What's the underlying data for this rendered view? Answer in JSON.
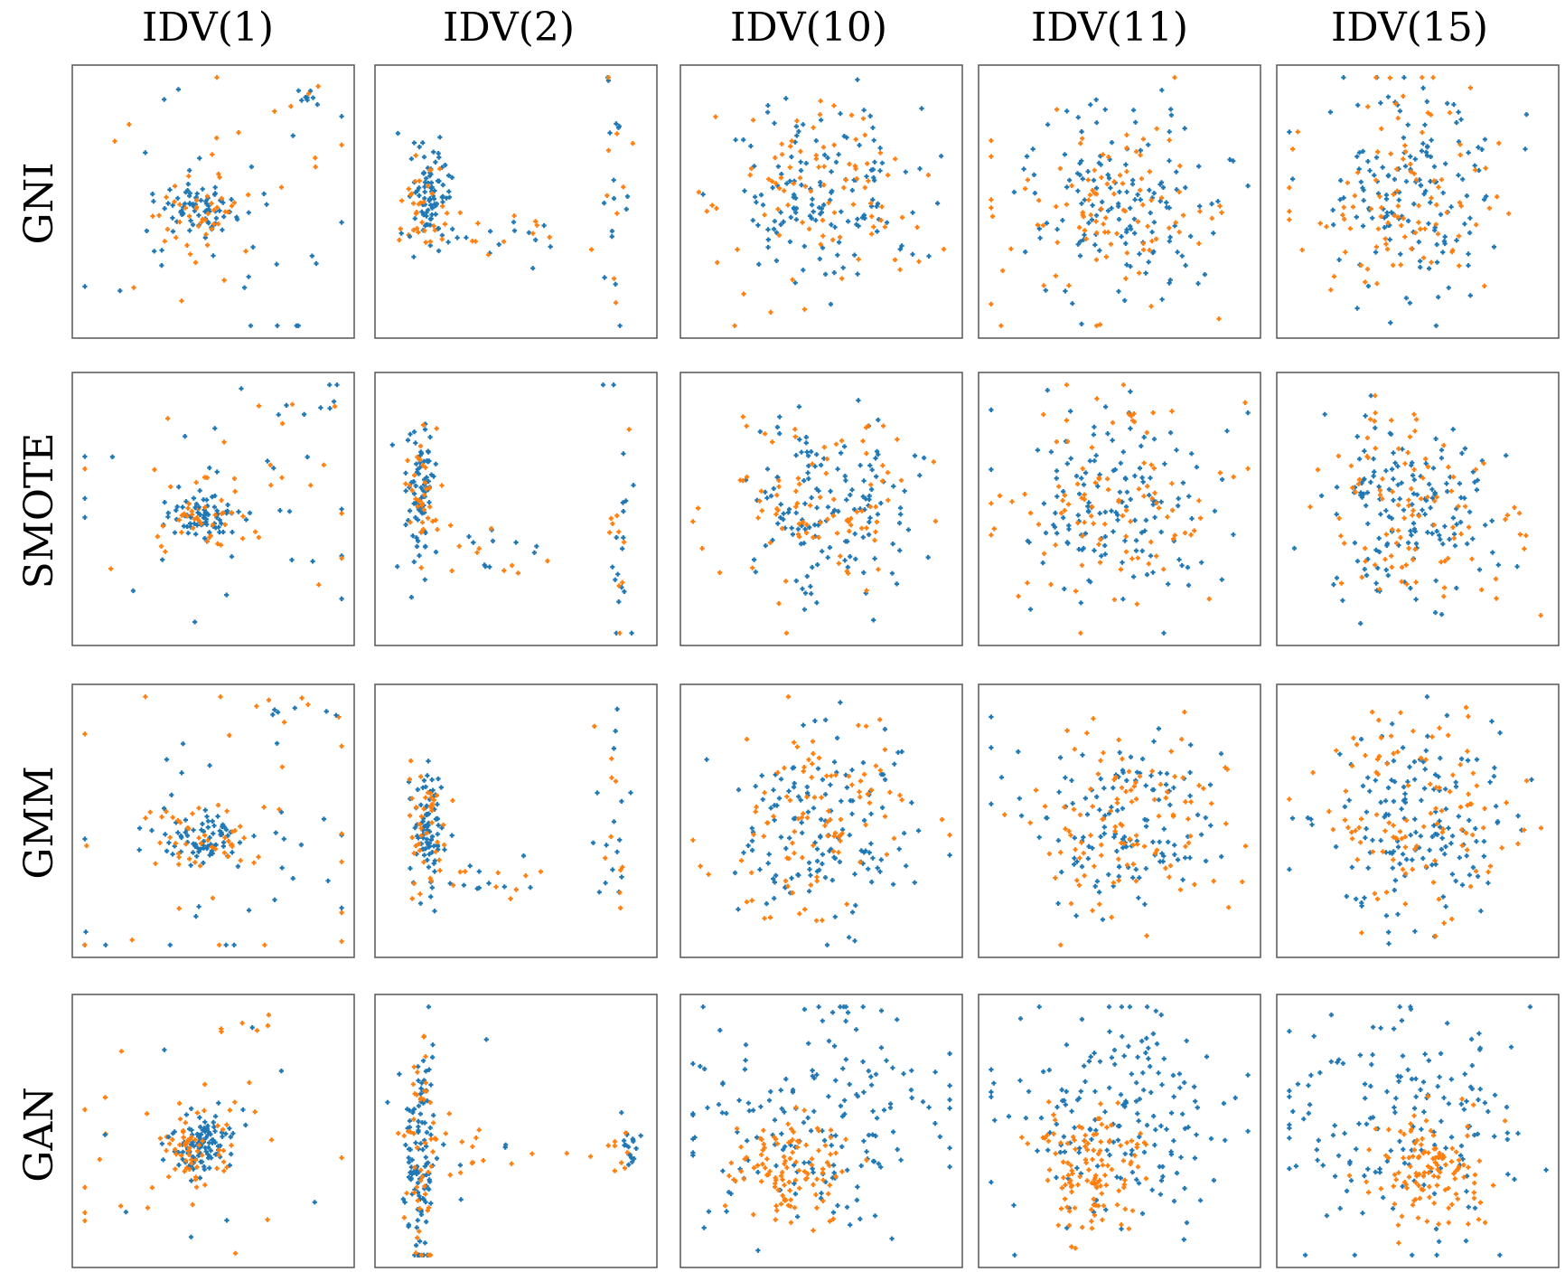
{
  "colors": {
    "real": "#1f77b4",
    "synthetic": "#ff7f0e"
  },
  "chart_data": {
    "type": "scatter",
    "columns": [
      "IDV(1)",
      "IDV(2)",
      "IDV(10)",
      "IDV(11)",
      "IDV(15)"
    ],
    "rows": [
      "GNI",
      "SMOTE",
      "GMM",
      "GAN"
    ],
    "axis_ticks": "none",
    "marker": "+",
    "series_colors": [
      "#1f77b4",
      "#ff7f0e"
    ],
    "xlim": [
      0,
      1
    ],
    "ylim": [
      0,
      1
    ],
    "panels": [
      {
        "row": "GNI",
        "column": "IDV(1)",
        "clusters": [
          {
            "color": "#1f77b4",
            "cx": 0.45,
            "cy": 0.47,
            "sx": 0.07,
            "sy": 0.05,
            "n": 70
          },
          {
            "color": "#ff7f0e",
            "cx": 0.45,
            "cy": 0.47,
            "sx": 0.09,
            "sy": 0.06,
            "n": 35
          },
          {
            "color": "#1f77b4",
            "cx": 0.55,
            "cy": 0.5,
            "sx": 0.35,
            "sy": 0.3,
            "n": 30
          },
          {
            "color": "#ff7f0e",
            "cx": 0.55,
            "cy": 0.5,
            "sx": 0.35,
            "sy": 0.3,
            "n": 20
          },
          {
            "color": "#1f77b4",
            "cx": 0.87,
            "cy": 0.9,
            "sx": 0.05,
            "sy": 0.02,
            "n": 7
          },
          {
            "color": "#ff7f0e",
            "cx": 0.82,
            "cy": 0.9,
            "sx": 0.07,
            "sy": 0.03,
            "n": 4
          }
        ]
      },
      {
        "row": "GNI",
        "column": "IDV(2)",
        "clusters": [
          {
            "color": "#1f77b4",
            "cx": 0.17,
            "cy": 0.5,
            "sx": 0.04,
            "sy": 0.1,
            "n": 85
          },
          {
            "color": "#ff7f0e",
            "cx": 0.17,
            "cy": 0.48,
            "sx": 0.05,
            "sy": 0.1,
            "n": 35
          },
          {
            "color": "#1f77b4",
            "cx": 0.4,
            "cy": 0.36,
            "sx": 0.12,
            "sy": 0.06,
            "n": 14
          },
          {
            "color": "#ff7f0e",
            "cx": 0.4,
            "cy": 0.36,
            "sx": 0.12,
            "sy": 0.06,
            "n": 10
          },
          {
            "color": "#1f77b4",
            "cx": 0.86,
            "cy": 0.5,
            "sx": 0.03,
            "sy": 0.3,
            "n": 16
          },
          {
            "color": "#ff7f0e",
            "cx": 0.86,
            "cy": 0.5,
            "sx": 0.03,
            "sy": 0.3,
            "n": 10
          }
        ]
      },
      {
        "row": "GNI",
        "column": "IDV(10)",
        "clusters": [
          {
            "color": "#1f77b4",
            "cx": 0.5,
            "cy": 0.52,
            "sx": 0.18,
            "sy": 0.18,
            "n": 140
          },
          {
            "color": "#ff7f0e",
            "cx": 0.5,
            "cy": 0.52,
            "sx": 0.2,
            "sy": 0.2,
            "n": 90
          }
        ]
      },
      {
        "row": "GNI",
        "column": "IDV(11)",
        "clusters": [
          {
            "color": "#1f77b4",
            "cx": 0.5,
            "cy": 0.5,
            "sx": 0.2,
            "sy": 0.18,
            "n": 140
          },
          {
            "color": "#ff7f0e",
            "cx": 0.5,
            "cy": 0.5,
            "sx": 0.22,
            "sy": 0.2,
            "n": 100
          }
        ]
      },
      {
        "row": "GNI",
        "column": "IDV(15)",
        "clusters": [
          {
            "color": "#1f77b4",
            "cx": 0.48,
            "cy": 0.52,
            "sx": 0.18,
            "sy": 0.2,
            "n": 150
          },
          {
            "color": "#ff7f0e",
            "cx": 0.48,
            "cy": 0.52,
            "sx": 0.2,
            "sy": 0.22,
            "n": 100
          }
        ]
      },
      {
        "row": "SMOTE",
        "column": "IDV(1)",
        "clusters": [
          {
            "color": "#1f77b4",
            "cx": 0.45,
            "cy": 0.47,
            "sx": 0.07,
            "sy": 0.04,
            "n": 70
          },
          {
            "color": "#ff7f0e",
            "cx": 0.45,
            "cy": 0.47,
            "sx": 0.09,
            "sy": 0.06,
            "n": 35
          },
          {
            "color": "#1f77b4",
            "cx": 0.55,
            "cy": 0.5,
            "sx": 0.35,
            "sy": 0.3,
            "n": 30
          },
          {
            "color": "#ff7f0e",
            "cx": 0.55,
            "cy": 0.5,
            "sx": 0.35,
            "sy": 0.3,
            "n": 20
          },
          {
            "color": "#1f77b4",
            "cx": 0.85,
            "cy": 0.88,
            "sx": 0.06,
            "sy": 0.03,
            "n": 6
          },
          {
            "color": "#ff7f0e",
            "cx": 0.8,
            "cy": 0.9,
            "sx": 0.08,
            "sy": 0.03,
            "n": 4
          }
        ]
      },
      {
        "row": "SMOTE",
        "column": "IDV(2)",
        "clusters": [
          {
            "color": "#1f77b4",
            "cx": 0.14,
            "cy": 0.55,
            "sx": 0.03,
            "sy": 0.15,
            "n": 80
          },
          {
            "color": "#ff7f0e",
            "cx": 0.14,
            "cy": 0.55,
            "sx": 0.035,
            "sy": 0.15,
            "n": 35
          },
          {
            "color": "#1f77b4",
            "cx": 0.4,
            "cy": 0.35,
            "sx": 0.12,
            "sy": 0.07,
            "n": 10
          },
          {
            "color": "#ff7f0e",
            "cx": 0.4,
            "cy": 0.35,
            "sx": 0.12,
            "sy": 0.07,
            "n": 10
          },
          {
            "color": "#1f77b4",
            "cx": 0.88,
            "cy": 0.48,
            "sx": 0.03,
            "sy": 0.3,
            "n": 18
          },
          {
            "color": "#ff7f0e",
            "cx": 0.88,
            "cy": 0.48,
            "sx": 0.03,
            "sy": 0.3,
            "n": 10
          }
        ]
      },
      {
        "row": "SMOTE",
        "column": "IDV(10)",
        "clusters": [
          {
            "color": "#1f77b4",
            "cx": 0.52,
            "cy": 0.5,
            "sx": 0.15,
            "sy": 0.16,
            "n": 140
          },
          {
            "color": "#ff7f0e",
            "cx": 0.5,
            "cy": 0.5,
            "sx": 0.2,
            "sy": 0.18,
            "n": 90
          }
        ]
      },
      {
        "row": "SMOTE",
        "column": "IDV(11)",
        "clusters": [
          {
            "color": "#1f77b4",
            "cx": 0.5,
            "cy": 0.5,
            "sx": 0.2,
            "sy": 0.18,
            "n": 140
          },
          {
            "color": "#ff7f0e",
            "cx": 0.5,
            "cy": 0.5,
            "sx": 0.22,
            "sy": 0.2,
            "n": 100
          }
        ]
      },
      {
        "row": "SMOTE",
        "column": "IDV(15)",
        "clusters": [
          {
            "color": "#1f77b4",
            "cx": 0.5,
            "cy": 0.5,
            "sx": 0.18,
            "sy": 0.18,
            "n": 150
          },
          {
            "color": "#ff7f0e",
            "cx": 0.5,
            "cy": 0.5,
            "sx": 0.2,
            "sy": 0.2,
            "n": 100
          }
        ]
      },
      {
        "row": "GMM",
        "column": "IDV(1)",
        "clusters": [
          {
            "color": "#1f77b4",
            "cx": 0.47,
            "cy": 0.43,
            "sx": 0.08,
            "sy": 0.05,
            "n": 70
          },
          {
            "color": "#ff7f0e",
            "cx": 0.47,
            "cy": 0.43,
            "sx": 0.1,
            "sy": 0.06,
            "n": 40
          },
          {
            "color": "#1f77b4",
            "cx": 0.55,
            "cy": 0.45,
            "sx": 0.35,
            "sy": 0.3,
            "n": 30
          },
          {
            "color": "#ff7f0e",
            "cx": 0.55,
            "cy": 0.45,
            "sx": 0.35,
            "sy": 0.3,
            "n": 25
          },
          {
            "color": "#1f77b4",
            "cx": 0.8,
            "cy": 0.91,
            "sx": 0.07,
            "sy": 0.02,
            "n": 6
          },
          {
            "color": "#ff7f0e",
            "cx": 0.75,
            "cy": 0.92,
            "sx": 0.08,
            "sy": 0.03,
            "n": 4
          }
        ]
      },
      {
        "row": "GMM",
        "column": "IDV(2)",
        "clusters": [
          {
            "color": "#1f77b4",
            "cx": 0.17,
            "cy": 0.48,
            "sx": 0.03,
            "sy": 0.12,
            "n": 85
          },
          {
            "color": "#ff7f0e",
            "cx": 0.17,
            "cy": 0.48,
            "sx": 0.04,
            "sy": 0.12,
            "n": 40
          },
          {
            "color": "#1f77b4",
            "cx": 0.38,
            "cy": 0.3,
            "sx": 0.1,
            "sy": 0.06,
            "n": 10
          },
          {
            "color": "#ff7f0e",
            "cx": 0.38,
            "cy": 0.3,
            "sx": 0.1,
            "sy": 0.06,
            "n": 10
          },
          {
            "color": "#1f77b4",
            "cx": 0.86,
            "cy": 0.48,
            "sx": 0.03,
            "sy": 0.3,
            "n": 16
          },
          {
            "color": "#ff7f0e",
            "cx": 0.86,
            "cy": 0.48,
            "sx": 0.03,
            "sy": 0.3,
            "n": 10
          }
        ]
      },
      {
        "row": "GMM",
        "column": "IDV(10)",
        "clusters": [
          {
            "color": "#1f77b4",
            "cx": 0.5,
            "cy": 0.5,
            "sx": 0.18,
            "sy": 0.18,
            "n": 140
          },
          {
            "color": "#ff7f0e",
            "cx": 0.5,
            "cy": 0.5,
            "sx": 0.2,
            "sy": 0.2,
            "n": 100
          }
        ]
      },
      {
        "row": "GMM",
        "column": "IDV(11)",
        "clusters": [
          {
            "color": "#1f77b4",
            "cx": 0.5,
            "cy": 0.5,
            "sx": 0.18,
            "sy": 0.18,
            "n": 130
          },
          {
            "color": "#ff7f0e",
            "cx": 0.53,
            "cy": 0.5,
            "sx": 0.18,
            "sy": 0.18,
            "n": 110
          }
        ]
      },
      {
        "row": "GMM",
        "column": "IDV(15)",
        "clusters": [
          {
            "color": "#1f77b4",
            "cx": 0.5,
            "cy": 0.5,
            "sx": 0.18,
            "sy": 0.18,
            "n": 150
          },
          {
            "color": "#ff7f0e",
            "cx": 0.5,
            "cy": 0.5,
            "sx": 0.2,
            "sy": 0.2,
            "n": 110
          }
        ]
      },
      {
        "row": "GAN",
        "column": "IDV(1)",
        "clusters": [
          {
            "color": "#1f77b4",
            "cx": 0.45,
            "cy": 0.45,
            "sx": 0.05,
            "sy": 0.06,
            "n": 110
          },
          {
            "color": "#ff7f0e",
            "cx": 0.42,
            "cy": 0.46,
            "sx": 0.08,
            "sy": 0.07,
            "n": 50
          },
          {
            "color": "#ff7f0e",
            "cx": 0.45,
            "cy": 0.45,
            "sx": 0.25,
            "sy": 0.15,
            "n": 30
          },
          {
            "color": "#1f77b4",
            "cx": 0.5,
            "cy": 0.5,
            "sx": 0.25,
            "sy": 0.2,
            "n": 15
          },
          {
            "color": "#ff7f0e",
            "cx": 0.62,
            "cy": 0.9,
            "sx": 0.1,
            "sy": 0.03,
            "n": 5
          }
        ]
      },
      {
        "row": "GAN",
        "column": "IDV(2)",
        "clusters": [
          {
            "color": "#1f77b4",
            "cx": 0.14,
            "cy": 0.4,
            "sx": 0.03,
            "sy": 0.22,
            "n": 110
          },
          {
            "color": "#ff7f0e",
            "cx": 0.15,
            "cy": 0.45,
            "sx": 0.04,
            "sy": 0.2,
            "n": 50
          },
          {
            "color": "#ff7f0e",
            "cx": 0.45,
            "cy": 0.4,
            "sx": 0.2,
            "sy": 0.08,
            "n": 15
          },
          {
            "color": "#1f77b4",
            "cx": 0.35,
            "cy": 0.6,
            "sx": 0.15,
            "sy": 0.2,
            "n": 8
          },
          {
            "color": "#1f77b4",
            "cx": 0.92,
            "cy": 0.45,
            "sx": 0.02,
            "sy": 0.04,
            "n": 18
          },
          {
            "color": "#ff7f0e",
            "cx": 0.9,
            "cy": 0.38,
            "sx": 0.03,
            "sy": 0.07,
            "n": 8
          }
        ]
      },
      {
        "row": "GAN",
        "column": "IDV(10)",
        "clusters": [
          {
            "color": "#1f77b4",
            "cx": 0.5,
            "cy": 0.55,
            "sx": 0.25,
            "sy": 0.22,
            "n": 170
          },
          {
            "color": "#ff7f0e",
            "cx": 0.38,
            "cy": 0.35,
            "sx": 0.12,
            "sy": 0.1,
            "n": 110
          }
        ]
      },
      {
        "row": "GAN",
        "column": "IDV(11)",
        "clusters": [
          {
            "color": "#1f77b4",
            "cx": 0.5,
            "cy": 0.55,
            "sx": 0.25,
            "sy": 0.22,
            "n": 170
          },
          {
            "color": "#ff7f0e",
            "cx": 0.38,
            "cy": 0.35,
            "sx": 0.1,
            "sy": 0.12,
            "n": 120
          }
        ]
      },
      {
        "row": "GAN",
        "column": "IDV(15)",
        "clusters": [
          {
            "color": "#1f77b4",
            "cx": 0.5,
            "cy": 0.55,
            "sx": 0.25,
            "sy": 0.2,
            "n": 160
          },
          {
            "color": "#ff7f0e",
            "cx": 0.55,
            "cy": 0.35,
            "sx": 0.1,
            "sy": 0.12,
            "n": 120
          }
        ]
      }
    ]
  }
}
